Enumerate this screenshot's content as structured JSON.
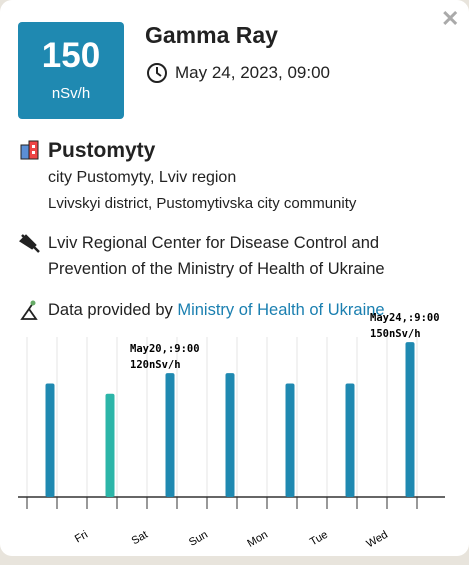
{
  "reading": {
    "value": "150",
    "unit": "nSv/h"
  },
  "header": {
    "title": "Gamma Ray",
    "datetime": "May 24, 2023, 09:00"
  },
  "location": {
    "name": "Pustomyty",
    "line1": "city Pustomyty, Lviv region",
    "line2": "Lvivskyi district, Pustomytivska city community"
  },
  "operator": {
    "lines": [
      "Lviv Regional Center for Disease Control and",
      "Prevention of the Ministry of Health of Ukraine"
    ]
  },
  "source": {
    "prefix": "Data provided by",
    "link": "Ministry of Health of Ukraine"
  },
  "chart_data": {
    "type": "bar",
    "categories": [
      null,
      null,
      "May20,:9:00",
      null,
      null,
      null,
      "May24,:9:00"
    ],
    "values": [
      110,
      100,
      120,
      120,
      110,
      110,
      150
    ],
    "value_labels": [
      null,
      null,
      "120nSv/h",
      null,
      null,
      null,
      "150nSv/h"
    ],
    "colors": [
      "#1f89b1",
      "#2cb5a8",
      "#1f89b1",
      "#1f89b1",
      "#1f89b1",
      "#1f89b1",
      "#1f89b1"
    ],
    "day_labels": [
      "Fri",
      "Sat",
      "Sun",
      "Mon",
      "Tue",
      "Wed"
    ],
    "ylim": [
      0,
      155
    ]
  }
}
